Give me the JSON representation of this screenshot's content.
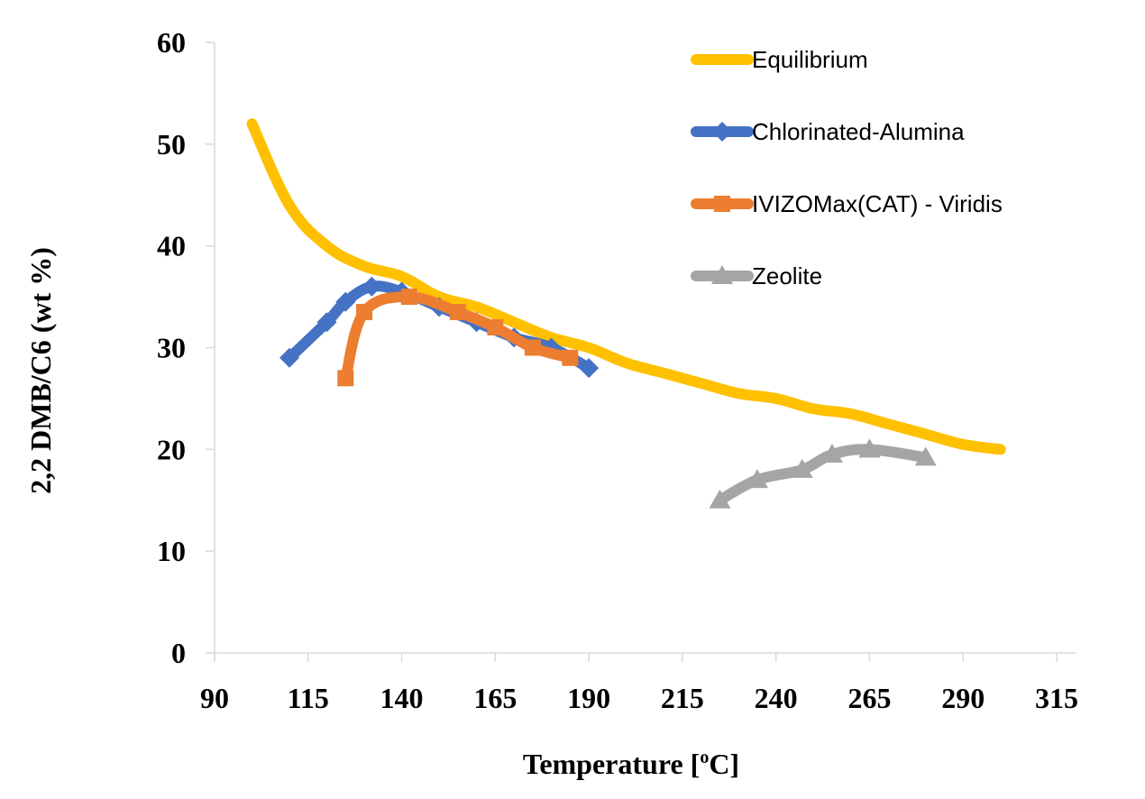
{
  "chart_data": {
    "type": "line",
    "title": "",
    "xlabel": "Temperature [",
    "xlabel_sup": "o",
    "xlabel_tail": "C]",
    "ylabel": "2,2 DMB/C6 (wt %)",
    "xlim": [
      90,
      315
    ],
    "ylim": [
      0,
      60
    ],
    "xticks": [
      90,
      115,
      140,
      165,
      190,
      215,
      240,
      265,
      290,
      315
    ],
    "yticks": [
      0,
      10,
      20,
      30,
      40,
      50,
      60
    ],
    "grid": false,
    "legend_position": "top-right",
    "series": [
      {
        "name": "Equilibrium",
        "color": "#FFC000",
        "marker": "none",
        "x": [
          100,
          110,
          120,
          130,
          140,
          150,
          160,
          170,
          180,
          190,
          200,
          210,
          220,
          230,
          240,
          250,
          260,
          270,
          280,
          290,
          300
        ],
        "y": [
          52,
          44,
          40,
          38,
          37,
          35,
          34,
          32.5,
          31,
          30,
          28.5,
          27.5,
          26.5,
          25.5,
          25,
          24,
          23.5,
          22.5,
          21.5,
          20.5,
          20
        ]
      },
      {
        "name": "Chlorinated-Alumina",
        "color": "#4472C4",
        "marker": "diamond",
        "x": [
          110,
          120,
          125,
          132,
          140,
          150,
          160,
          170,
          180,
          190
        ],
        "y": [
          29,
          32.5,
          34.5,
          36,
          35.5,
          34,
          32.5,
          31,
          30,
          28
        ]
      },
      {
        "name": "IVIZOMax(CAT) - Viridis",
        "color": "#ED7D31",
        "marker": "square",
        "x": [
          125,
          130,
          142,
          155,
          165,
          175,
          185
        ],
        "y": [
          27,
          33.5,
          35,
          33.5,
          32,
          30,
          29
        ]
      },
      {
        "name": "Zeolite",
        "color": "#A5A5A5",
        "marker": "triangle",
        "x": [
          225,
          235,
          247,
          255,
          265,
          280
        ],
        "y": [
          15,
          17,
          18,
          19.5,
          20,
          19.2
        ]
      }
    ]
  }
}
